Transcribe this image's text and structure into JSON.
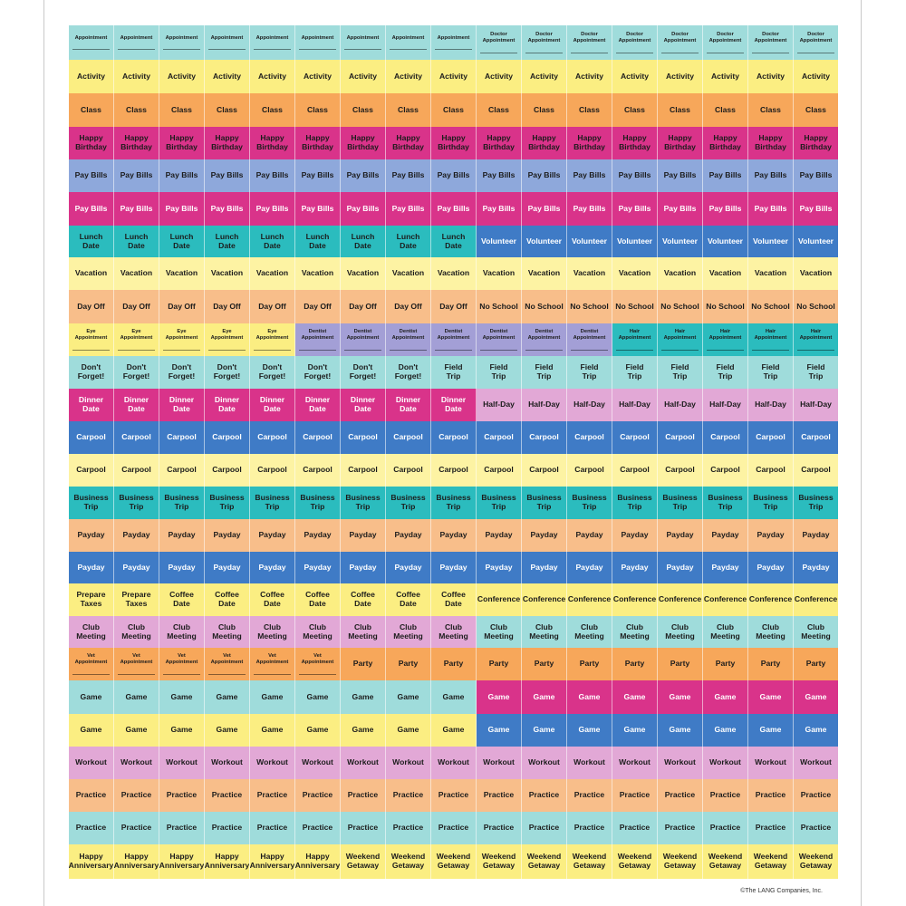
{
  "colors": {
    "teal_light": "#9fdcdb",
    "yellow": "#fbee82",
    "orange": "#f7a75a",
    "magenta": "#d9338a",
    "periwinkle": "#8ea8db",
    "teal": "#2bbcbe",
    "pale_yellow": "#fdf3a3",
    "peach": "#f8be8a",
    "blue": "#3f7bc6",
    "lavender": "#a39fd6",
    "pink": "#e2a8d6",
    "white_text": "#ffffff"
  },
  "copyright": "©The LANG Companies, Inc.",
  "rows": [
    {
      "segments": [
        {
          "count": 9,
          "label": "Appointment",
          "color": "#9fdcdb",
          "small": true
        },
        {
          "count": 8,
          "label": "Doctor\nAppointment",
          "color": "#9fdcdb",
          "small": true
        }
      ]
    },
    {
      "segments": [
        {
          "count": 17,
          "label": "Activity",
          "color": "#fbee82"
        }
      ]
    },
    {
      "segments": [
        {
          "count": 17,
          "label": "Class",
          "color": "#f7a75a"
        }
      ]
    },
    {
      "segments": [
        {
          "count": 17,
          "label": "Happy\nBirthday",
          "color": "#d9338a"
        }
      ]
    },
    {
      "segments": [
        {
          "count": 17,
          "label": "Pay Bills",
          "color": "#8ea8db"
        }
      ]
    },
    {
      "segments": [
        {
          "count": 17,
          "label": "Pay Bills",
          "color": "#d9338a",
          "light": true
        }
      ]
    },
    {
      "segments": [
        {
          "count": 9,
          "label": "Lunch\nDate",
          "color": "#2bbcbe"
        },
        {
          "count": 8,
          "label": "Volunteer",
          "color": "#3f7bc6",
          "light": true
        }
      ]
    },
    {
      "segments": [
        {
          "count": 17,
          "label": "Vacation",
          "color": "#fdf3a3"
        }
      ]
    },
    {
      "segments": [
        {
          "count": 9,
          "label": "Day Off",
          "color": "#f8be8a"
        },
        {
          "count": 8,
          "label": "No School",
          "color": "#f8be8a"
        }
      ]
    },
    {
      "segments": [
        {
          "count": 5,
          "label": "Eye\nAppointment",
          "color": "#fbee82",
          "small": true
        },
        {
          "count": 7,
          "label": "Dentist\nAppointment",
          "color": "#a39fd6",
          "small": true
        },
        {
          "count": 5,
          "label": "Hair\nAppointment",
          "color": "#2bbcbe",
          "small": true
        }
      ]
    },
    {
      "segments": [
        {
          "count": 8,
          "label": "Don't\nForget!",
          "color": "#9fdcdb"
        },
        {
          "count": 9,
          "label": "Field\nTrip",
          "color": "#9fdcdb"
        }
      ]
    },
    {
      "segments": [
        {
          "count": 9,
          "label": "Dinner\nDate",
          "color": "#d9338a",
          "light": true
        },
        {
          "count": 8,
          "label": "Half-Day",
          "color": "#e2a8d6"
        }
      ]
    },
    {
      "segments": [
        {
          "count": 17,
          "label": "Carpool",
          "color": "#3f7bc6",
          "light": true
        }
      ]
    },
    {
      "segments": [
        {
          "count": 17,
          "label": "Carpool",
          "color": "#fdf3a3"
        }
      ]
    },
    {
      "segments": [
        {
          "count": 17,
          "label": "Business\nTrip",
          "color": "#2bbcbe"
        }
      ]
    },
    {
      "segments": [
        {
          "count": 17,
          "label": "Payday",
          "color": "#f8be8a"
        }
      ]
    },
    {
      "segments": [
        {
          "count": 17,
          "label": "Payday",
          "color": "#3f7bc6",
          "light": true
        }
      ]
    },
    {
      "segments": [
        {
          "count": 2,
          "label": "Prepare\nTaxes",
          "color": "#fbee82"
        },
        {
          "count": 7,
          "label": "Coffee\nDate",
          "color": "#fbee82"
        },
        {
          "count": 8,
          "label": "Conference",
          "color": "#fbee82"
        }
      ]
    },
    {
      "segments": [
        {
          "count": 9,
          "label": "Club\nMeeting",
          "color": "#e2a8d6"
        },
        {
          "count": 8,
          "label": "Club\nMeeting",
          "color": "#9fdcdb"
        }
      ]
    },
    {
      "segments": [
        {
          "count": 6,
          "label": "Vet\nAppointment",
          "color": "#f7a75a",
          "small": true
        },
        {
          "count": 11,
          "label": "Party",
          "color": "#f7a75a"
        }
      ]
    },
    {
      "segments": [
        {
          "count": 9,
          "label": "Game",
          "color": "#9fdcdb"
        },
        {
          "count": 8,
          "label": "Game",
          "color": "#d9338a",
          "light": true
        }
      ]
    },
    {
      "segments": [
        {
          "count": 9,
          "label": "Game",
          "color": "#fbee82"
        },
        {
          "count": 8,
          "label": "Game",
          "color": "#3f7bc6",
          "light": true
        }
      ]
    },
    {
      "segments": [
        {
          "count": 17,
          "label": "Workout",
          "color": "#e2a8d6"
        }
      ]
    },
    {
      "segments": [
        {
          "count": 17,
          "label": "Practice",
          "color": "#f8be8a"
        }
      ]
    },
    {
      "segments": [
        {
          "count": 17,
          "label": "Practice",
          "color": "#9fdcdb"
        }
      ]
    },
    {
      "segments": [
        {
          "count": 6,
          "label": "Happy\nAnniversary",
          "color": "#fbee82"
        },
        {
          "count": 11,
          "label": "Weekend\nGetaway",
          "color": "#fbee82"
        }
      ]
    }
  ]
}
